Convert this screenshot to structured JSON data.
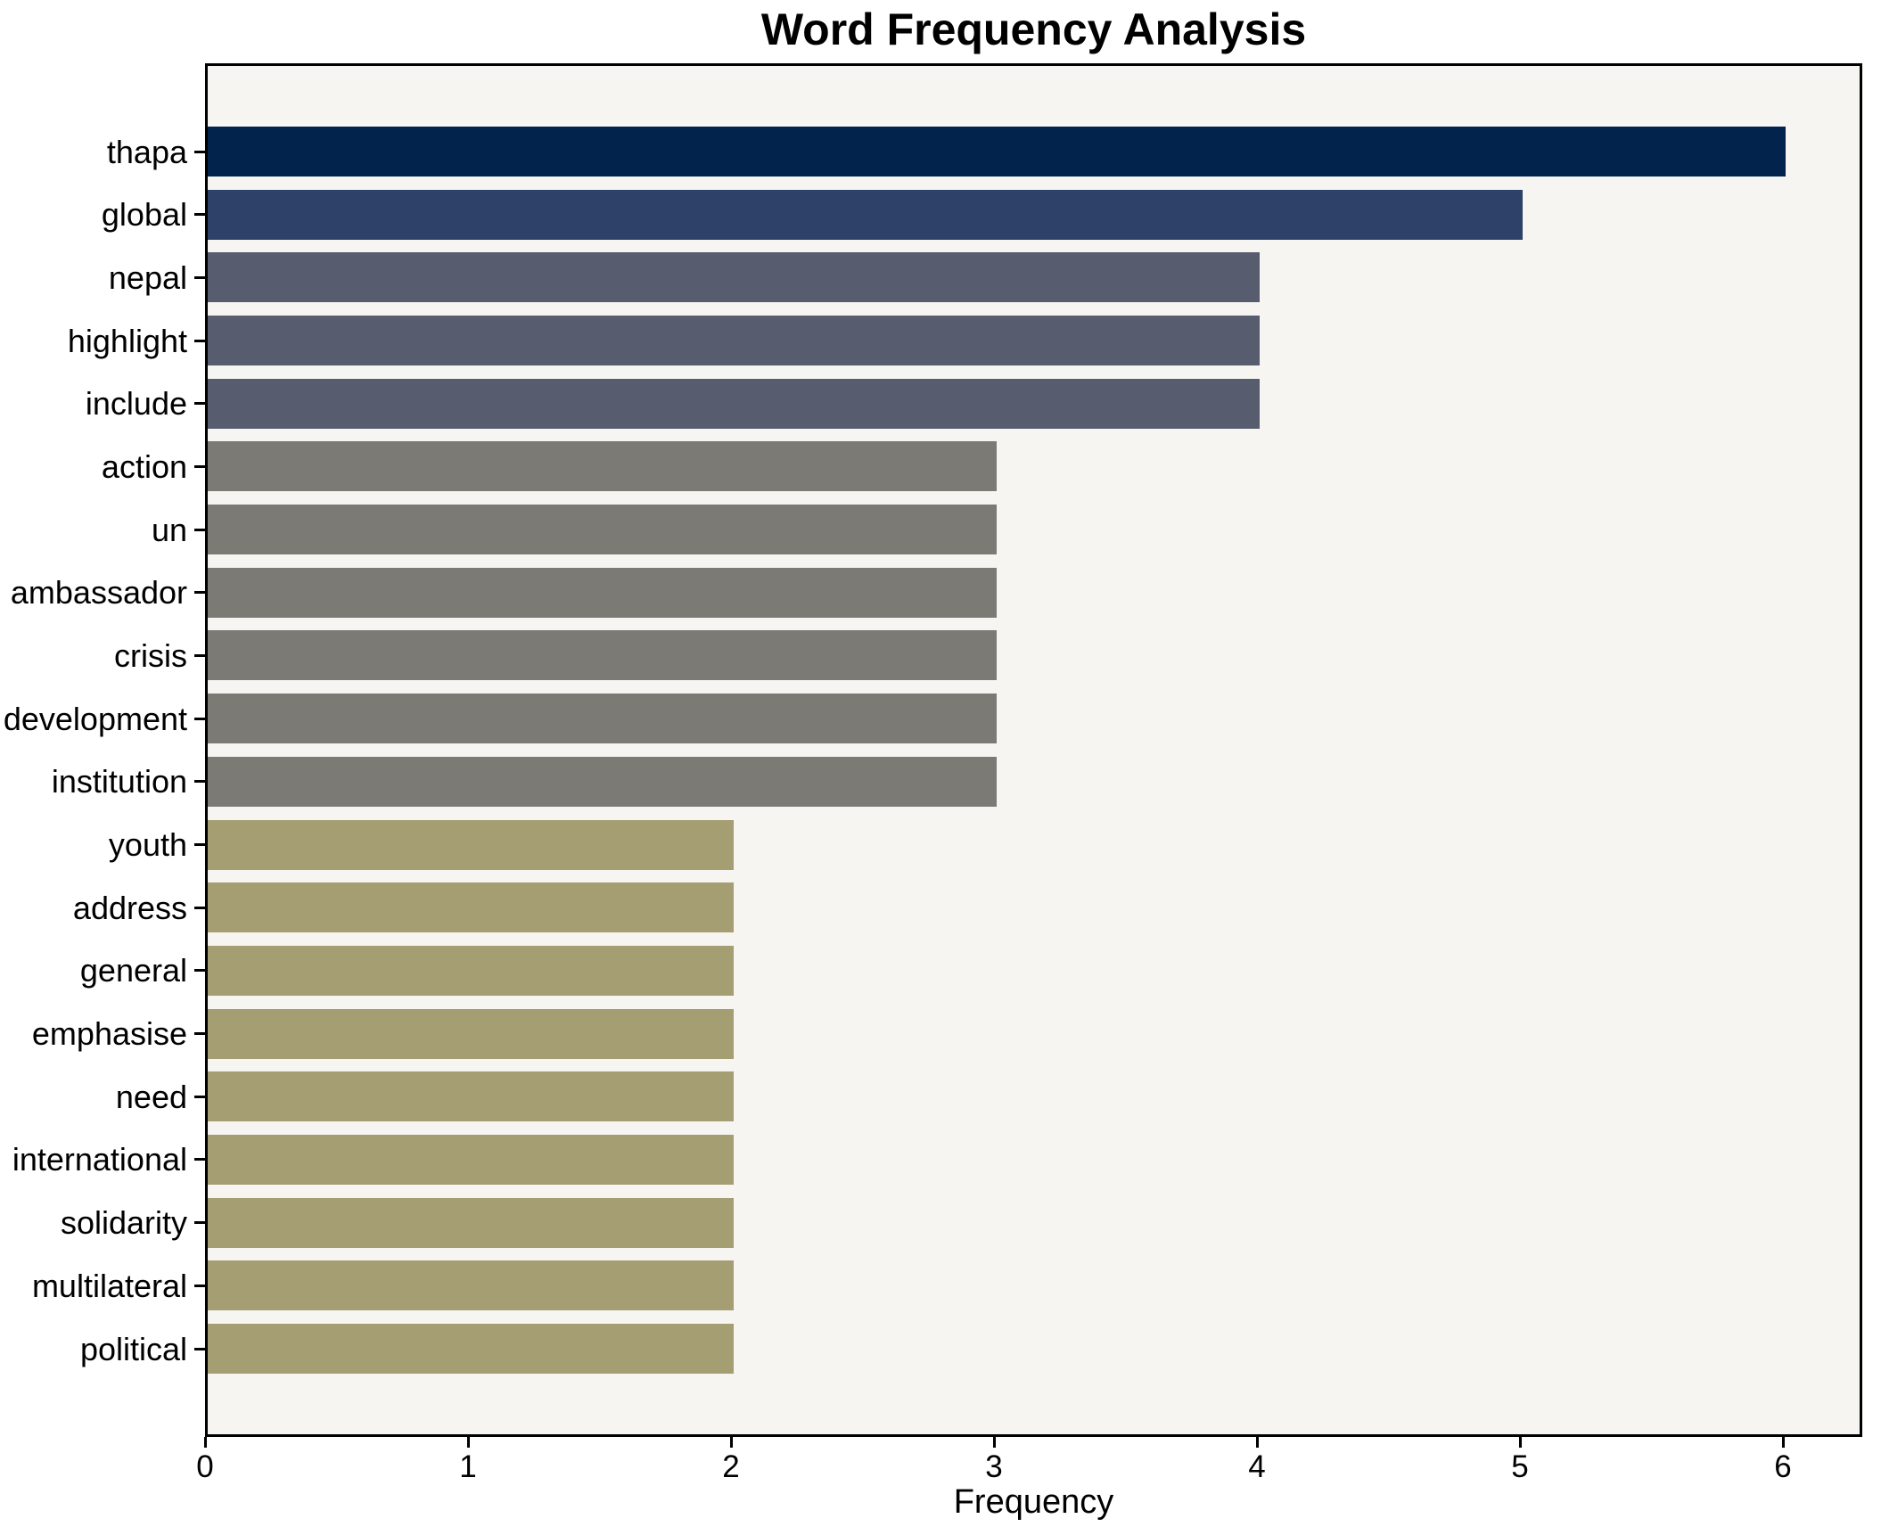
{
  "title": "Word Frequency Analysis",
  "chart_data": {
    "type": "bar",
    "orientation": "horizontal",
    "title": "Word Frequency Analysis",
    "xlabel": "Frequency",
    "ylabel": "",
    "xlim": [
      0,
      6.3
    ],
    "x_ticks": [
      "0",
      "1",
      "2",
      "3",
      "4",
      "5",
      "6"
    ],
    "grid": false,
    "legend": "none",
    "categories": [
      "thapa",
      "global",
      "nepal",
      "highlight",
      "include",
      "action",
      "un",
      "ambassador",
      "crisis",
      "development",
      "institution",
      "youth",
      "address",
      "general",
      "emphasise",
      "need",
      "international",
      "solidarity",
      "multilateral",
      "political"
    ],
    "values": [
      6,
      5,
      4,
      4,
      4,
      3,
      3,
      3,
      3,
      3,
      3,
      2,
      2,
      2,
      2,
      2,
      2,
      2,
      2,
      2
    ],
    "bar_colors": [
      "#02234c",
      "#2e4168",
      "#575d6e",
      "#575d6e",
      "#575d6e",
      "#7b7a75",
      "#7b7a75",
      "#7b7a75",
      "#7b7a75",
      "#7b7a75",
      "#7b7a75",
      "#a59e73",
      "#a59e73",
      "#a59e73",
      "#a59e73",
      "#a59e73",
      "#a59e73",
      "#a59e73",
      "#a59e73",
      "#a59e73"
    ],
    "value_color_map": {
      "6": "#02234c",
      "5": "#2e4168",
      "4": "#575d6e",
      "3": "#7b7a75",
      "2": "#a59e73"
    },
    "plot_background": "#f6f5f2",
    "figure_background": "#ffffff",
    "spine_color": "#000000"
  }
}
